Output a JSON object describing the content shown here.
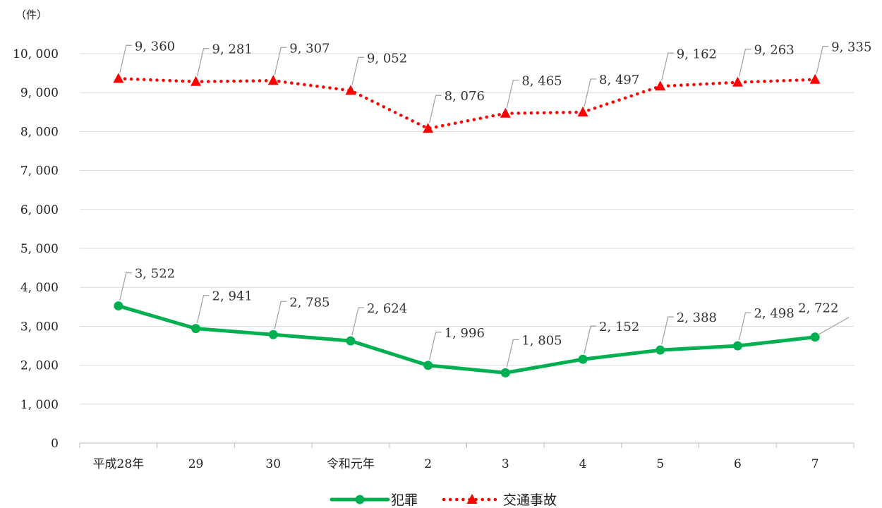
{
  "chart_data": {
    "type": "line",
    "unit_label": "（件）",
    "categories": [
      "平成28年",
      "29",
      "30",
      "令和元年",
      "2",
      "3",
      "4",
      "5",
      "6",
      "7"
    ],
    "ylim": [
      0,
      10000
    ],
    "y_ticks": [
      "0",
      "1, 000",
      "2, 000",
      "3, 000",
      "4, 000",
      "5, 000",
      "6, 000",
      "7, 000",
      "8, 000",
      "9, 000",
      "10, 000"
    ],
    "grid": true,
    "legend_position": "bottom",
    "series": [
      {
        "name": "犯罪",
        "color": "#00b050",
        "marker": "circle",
        "line_style": "solid",
        "values": [
          3522,
          2941,
          2785,
          2624,
          1996,
          1805,
          2152,
          2388,
          2498,
          2722
        ],
        "labels": [
          "3, 522",
          "2, 941",
          "2, 785",
          "2, 624",
          "1, 996",
          "1, 805",
          "2, 152",
          "2, 388",
          "2, 498",
          "2, 722"
        ]
      },
      {
        "name": "交通事故",
        "color": "#ff0000",
        "marker": "triangle",
        "line_style": "dotted",
        "values": [
          9360,
          9281,
          9307,
          9052,
          8076,
          8465,
          8497,
          9162,
          9263,
          9335
        ],
        "labels": [
          "9, 360",
          "9, 281",
          "9, 307",
          "9, 052",
          "8, 076",
          "8, 465",
          "8, 497",
          "9, 162",
          "9, 263",
          "9, 335"
        ]
      }
    ]
  }
}
